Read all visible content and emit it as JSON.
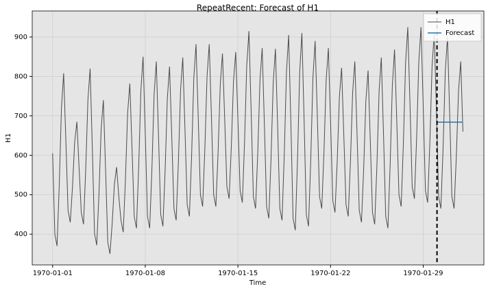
{
  "chart_data": {
    "type": "line",
    "title": "RepeatRecent: Forecast of H1",
    "x_label": "Time",
    "y_label": "H1",
    "x": [
      0,
      4,
      8,
      12,
      16,
      20,
      24,
      28,
      32,
      36,
      40,
      44,
      48,
      52,
      56,
      60,
      64,
      68,
      72,
      76,
      80,
      84,
      88,
      92,
      96,
      100,
      104,
      108,
      112,
      116,
      120,
      124,
      128,
      132,
      136,
      140,
      144,
      148,
      152,
      156,
      160,
      164,
      168,
      172,
      176,
      180,
      184,
      188,
      192,
      196,
      200,
      204,
      208,
      212,
      216,
      220,
      224,
      228,
      232,
      236,
      240,
      244,
      248,
      252,
      256,
      260,
      264,
      268,
      272,
      276,
      280,
      284,
      288,
      292,
      296,
      300,
      304,
      308,
      312,
      316,
      320,
      324,
      328,
      332,
      336,
      340,
      344,
      348,
      352,
      356,
      360,
      364,
      368,
      372,
      376,
      380,
      384,
      388,
      392,
      396,
      400,
      404,
      408,
      412,
      416,
      420,
      424,
      428,
      432,
      436,
      440,
      444,
      448,
      452,
      456,
      460,
      464,
      468,
      472,
      476,
      480,
      484,
      488,
      492,
      496,
      500,
      504,
      508,
      512,
      516,
      520,
      524,
      528,
      532,
      536,
      540,
      544,
      548,
      552,
      556,
      560,
      564,
      568,
      572,
      576,
      580,
      584,
      588,
      592,
      596,
      600,
      604,
      608,
      612,
      616,
      620,
      624,
      628,
      632,
      636,
      640,
      644,
      648,
      652,
      656,
      660,
      664,
      668,
      672,
      676,
      680,
      684,
      688,
      692,
      696,
      700,
      704,
      708,
      712,
      716,
      720,
      724,
      728,
      732,
      736,
      740,
      744
    ],
    "series": [
      {
        "name": "H1",
        "color": "#4a4a4a",
        "values": [
          605,
          400,
          370,
          523,
          720,
          808,
          638,
          460,
          430,
          519,
          634,
          685,
          568,
          455,
          425,
          563,
          741,
          820,
          618,
          402,
          372,
          501,
          666,
          740,
          565,
          380,
          350,
          427,
          526,
          570,
          496,
          435,
          405,
          537,
          707,
          782,
          617,
          445,
          415,
          567,
          763,
          850,
          655,
          445,
          415,
          563,
          753,
          838,
          650,
          450,
          420,
          562,
          744,
          825,
          650,
          465,
          435,
          580,
          765,
          848,
          666,
          475,
          445,
          598,
          795,
          882,
          697,
          500,
          470,
          614,
          800,
          882,
          697,
          500,
          470,
          606,
          780,
          858,
          693,
          520,
          490,
          620,
          788,
          862,
          690,
          510,
          480,
          632,
          828,
          915,
          712,
          495,
          465,
          607,
          791,
          872,
          678,
          470,
          440,
          590,
          784,
          870,
          675,
          465,
          435,
          600,
          811,
          905,
          683,
          440,
          410,
          585,
          810,
          910,
          690,
          450,
          420,
          585,
          796,
          890,
          699,
          495,
          465,
          607,
          791,
          872,
          685,
          485,
          455,
          583,
          749,
          822,
          652,
          475,
          445,
          583,
          759,
          838,
          655,
          460,
          430,
          565,
          738,
          815,
          639,
          455,
          425,
          573,
          763,
          848,
          653,
          445,
          415,
          574,
          777,
          868,
          689,
          500,
          470,
          629,
          834,
          925,
          730,
          520,
          490,
          642,
          838,
          925,
          725,
          510,
          480,
          631,
          824,
          910,
          710,
          495,
          465,
          617,
          813,
          900,
          704,
          495,
          465,
          596,
          763,
          838,
          660
        ]
      },
      {
        "name": "Forecast",
        "color": "#1f77b4",
        "x": [
          697,
          744
        ],
        "values": [
          684,
          684
        ]
      }
    ],
    "split_x": 697,
    "xlim": [
      -37,
      782
    ],
    "ylim": [
      322,
      966
    ],
    "xticks": [
      {
        "value": 0,
        "label": "1970-01-01"
      },
      {
        "value": 168,
        "label": "1970-01-08"
      },
      {
        "value": 336,
        "label": "1970-01-15"
      },
      {
        "value": 504,
        "label": "1970-01-22"
      },
      {
        "value": 672,
        "label": "1970-01-29"
      }
    ],
    "yticks": [
      400,
      500,
      600,
      700,
      800,
      900
    ],
    "grid": true,
    "legend": "upper right"
  }
}
